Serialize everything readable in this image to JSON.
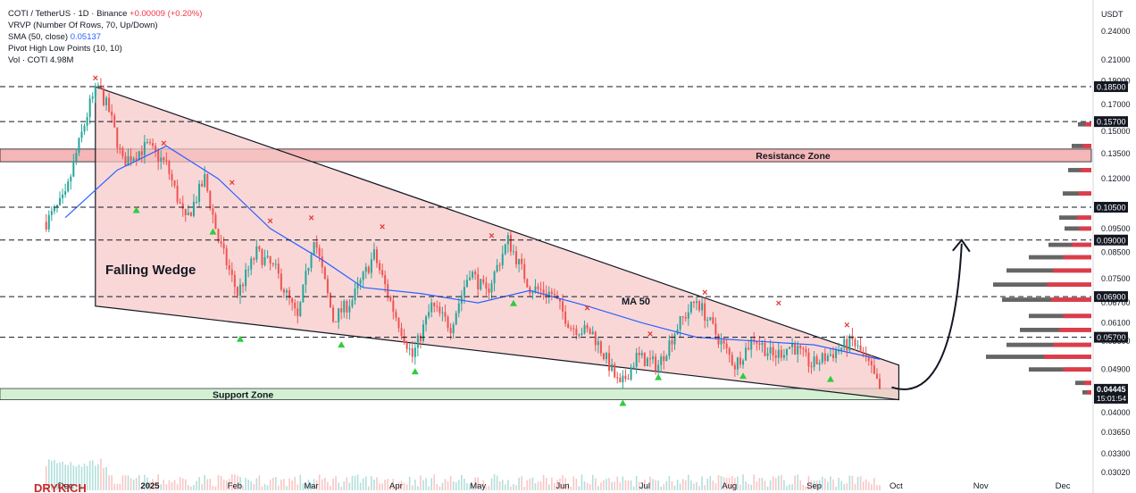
{
  "legend": {
    "symbol": "COTI / TetherUS · 1D · Binance",
    "change": "+0.00009 (+0.20%)",
    "vrvp": "VRVP (Number Of Rows, 70, Up/Down)",
    "sma_label": "SMA (50, close)",
    "sma_value": "0.05137",
    "pivot": "Pivot High Low Points (10, 10)",
    "vol_label": "Vol · COTI",
    "vol_value": "4.98M"
  },
  "axis": {
    "currency": "USDT"
  },
  "annotations": {
    "resistance_zone": "Resistance Zone",
    "support_zone": "Support Zone",
    "pattern": "Falling Wedge",
    "ma": "MA 50"
  },
  "watermark": "DRYKICH",
  "colors": {
    "up": "#26a69a",
    "down": "#ef5350",
    "sma": "#2962ff",
    "wedge": "#f7c6c6",
    "resistance": "#f4b6b6",
    "support": "#cdeecc",
    "level_label": "#131722"
  },
  "chart_data": {
    "type": "candlestick",
    "x_ticks": [
      "Dec",
      "2025",
      "Feb",
      "Mar",
      "Apr",
      "May",
      "Jun",
      "Jul",
      "Aug",
      "Sep",
      "Oct",
      "Nov",
      "Dec"
    ],
    "y_ticks": [
      "0.24000",
      "0.21000",
      "0.19000",
      "0.17000",
      "0.15000",
      "0.13500",
      "0.12000",
      "0.09500",
      "0.08500",
      "0.07500",
      "0.06700",
      "0.06100",
      "0.05600",
      "0.04900",
      "0.04000",
      "0.03650",
      "0.03300",
      "0.03020"
    ],
    "y_scale": "log",
    "levels": [
      {
        "value": 0.185,
        "label": "0.18500",
        "style": "dashed"
      },
      {
        "value": 0.157,
        "label": "0.15700",
        "style": "dashed"
      },
      {
        "value": 0.105,
        "label": "0.10500",
        "style": "dashed"
      },
      {
        "value": 0.09,
        "label": "0.09000",
        "style": "dashed"
      },
      {
        "value": 0.069,
        "label": "0.06900",
        "style": "dashed"
      },
      {
        "value": 0.057,
        "label": "0.05700",
        "style": "dashed"
      }
    ],
    "last_price": "0.04445",
    "countdown": "15:01:54",
    "resistance_zone": [
      0.13,
      0.138
    ],
    "support_zone": [
      0.0425,
      0.0448
    ],
    "close_path": [
      [
        "2024-11-24",
        0.098
      ],
      [
        "2024-12-01",
        0.11
      ],
      [
        "2024-12-05",
        0.135
      ],
      [
        "2024-12-10",
        0.17
      ],
      [
        "2024-12-13",
        0.185
      ],
      [
        "2024-12-17",
        0.165
      ],
      [
        "2024-12-22",
        0.13
      ],
      [
        "2024-12-31",
        0.14
      ],
      [
        "2025-01-07",
        0.128
      ],
      [
        "2025-01-14",
        0.098
      ],
      [
        "2025-01-21",
        0.12
      ],
      [
        "2025-01-26",
        0.09
      ],
      [
        "2025-02-02",
        0.07
      ],
      [
        "2025-02-09",
        0.085
      ],
      [
        "2025-02-16",
        0.078
      ],
      [
        "2025-02-24",
        0.062
      ],
      [
        "2025-03-02",
        0.092
      ],
      [
        "2025-03-09",
        0.062
      ],
      [
        "2025-03-16",
        0.068
      ],
      [
        "2025-03-24",
        0.084
      ],
      [
        "2025-03-31",
        0.065
      ],
      [
        "2025-04-07",
        0.052
      ],
      [
        "2025-04-14",
        0.066
      ],
      [
        "2025-04-21",
        0.06
      ],
      [
        "2025-04-28",
        0.078
      ],
      [
        "2025-05-04",
        0.07
      ],
      [
        "2025-05-12",
        0.09
      ],
      [
        "2025-05-20",
        0.072
      ],
      [
        "2025-05-28",
        0.07
      ],
      [
        "2025-06-04",
        0.06
      ],
      [
        "2025-06-12",
        0.058
      ],
      [
        "2025-06-18",
        0.05
      ],
      [
        "2025-06-22",
        0.045
      ],
      [
        "2025-06-28",
        0.052
      ],
      [
        "2025-07-06",
        0.05
      ],
      [
        "2025-07-13",
        0.06
      ],
      [
        "2025-07-20",
        0.068
      ],
      [
        "2025-07-27",
        0.058
      ],
      [
        "2025-08-03",
        0.05
      ],
      [
        "2025-08-10",
        0.057
      ],
      [
        "2025-08-17",
        0.052
      ],
      [
        "2025-08-24",
        0.055
      ],
      [
        "2025-08-31",
        0.05
      ],
      [
        "2025-09-08",
        0.053
      ],
      [
        "2025-09-15",
        0.056
      ],
      [
        "2025-09-21",
        0.05
      ],
      [
        "2025-09-25",
        0.0445
      ]
    ],
    "sma_path": [
      [
        "2024-12-01",
        0.1
      ],
      [
        "2024-12-20",
        0.125
      ],
      [
        "2025-01-07",
        0.14
      ],
      [
        "2025-01-26",
        0.12
      ],
      [
        "2025-02-14",
        0.095
      ],
      [
        "2025-03-05",
        0.082
      ],
      [
        "2025-03-20",
        0.072
      ],
      [
        "2025-04-10",
        0.07
      ],
      [
        "2025-05-01",
        0.067
      ],
      [
        "2025-05-20",
        0.071
      ],
      [
        "2025-06-10",
        0.066
      ],
      [
        "2025-06-30",
        0.061
      ],
      [
        "2025-07-20",
        0.057
      ],
      [
        "2025-08-10",
        0.056
      ],
      [
        "2025-09-01",
        0.055
      ],
      [
        "2025-09-25",
        0.0514
      ]
    ],
    "wedge": {
      "upper": [
        [
          "2024-12-12",
          0.185
        ],
        [
          "2025-10-02",
          0.05
        ]
      ],
      "lower": [
        [
          "2024-12-12",
          0.066
        ],
        [
          "2025-10-02",
          0.0425
        ]
      ]
    },
    "pivot_highs": [
      [
        "2024-12-12",
        0.193
      ],
      [
        "2025-01-06",
        0.142
      ],
      [
        "2025-01-31",
        0.118
      ],
      [
        "2025-02-14",
        0.0985
      ],
      [
        "2025-03-01",
        0.1
      ],
      [
        "2025-03-27",
        0.096
      ],
      [
        "2025-05-06",
        0.092
      ],
      [
        "2025-06-10",
        0.0655
      ],
      [
        "2025-07-03",
        0.058
      ],
      [
        "2025-07-23",
        0.0705
      ],
      [
        "2025-08-19",
        0.067
      ],
      [
        "2025-09-13",
        0.0605
      ]
    ],
    "pivot_lows": [
      [
        "2024-12-27",
        0.1035
      ],
      [
        "2025-01-24",
        0.0935
      ],
      [
        "2025-02-03",
        0.0565
      ],
      [
        "2025-03-12",
        0.055
      ],
      [
        "2025-04-08",
        0.0485
      ],
      [
        "2025-05-14",
        0.0668
      ],
      [
        "2025-06-23",
        0.0418
      ],
      [
        "2025-07-06",
        0.0472
      ],
      [
        "2025-08-06",
        0.0475
      ],
      [
        "2025-09-07",
        0.0468
      ]
    ],
    "projection": {
      "from": [
        "2025-10-02",
        0.0447
      ],
      "to": [
        "2025-10-25",
        0.09
      ]
    }
  }
}
